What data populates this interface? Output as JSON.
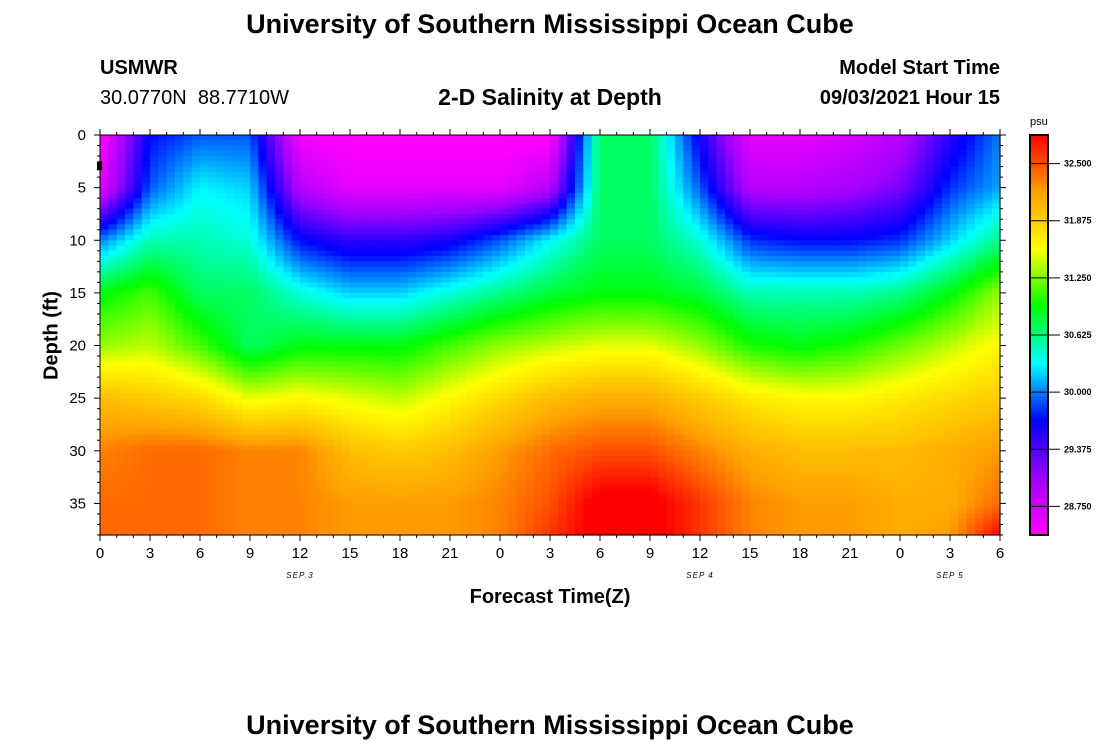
{
  "header": {
    "title": "University of Southern Mississippi Ocean Cube",
    "station_name": "USMWR",
    "station_coords": "30.0770N  88.7710W",
    "plot_title": "2-D Salinity at Depth",
    "model_start_label": "Model Start Time",
    "model_start_value": "09/03/2021 Hour 15"
  },
  "footer": {
    "title": "University of Southern Mississippi Ocean Cube"
  },
  "chart_data": {
    "type": "heatmap",
    "title": "2-D Salinity at Depth",
    "xlabel": "Forecast Time(Z)",
    "ylabel": "Depth (ft)",
    "x_ticks": [
      "0",
      "3",
      "6",
      "9",
      "12",
      "15",
      "18",
      "21",
      "0",
      "3",
      "6",
      "9",
      "12",
      "15",
      "18",
      "21",
      "0",
      "3",
      "6"
    ],
    "x_range_hours": [
      0,
      54
    ],
    "date_labels": [
      {
        "text": "SEP 3",
        "hour": 12
      },
      {
        "text": "SEP 4",
        "hour": 36
      },
      {
        "text": "SEP 5",
        "hour": 51
      }
    ],
    "y_ticks": [
      0,
      5,
      10,
      15,
      20,
      25,
      30,
      35
    ],
    "y_range_ft": [
      0,
      38
    ],
    "y_inverted": true,
    "colorbar": {
      "unit": "psu",
      "ticks": [
        "32.500",
        "31.875",
        "31.250",
        "30.625",
        "30.000",
        "29.375",
        "28.750"
      ],
      "range": [
        28.4375,
        32.8125
      ],
      "colors": [
        "#ff00ff",
        "#a000ff",
        "#0000ff",
        "#00ffff",
        "#00ff00",
        "#ffff00",
        "#ffa000",
        "#ff0000"
      ]
    },
    "depth_profile_ft": [
      0,
      5,
      10,
      15,
      20,
      25,
      30,
      35,
      38
    ],
    "time_profile_hours": [
      0,
      3,
      6,
      9,
      12,
      15,
      18,
      21,
      24,
      27,
      30,
      33,
      36,
      39,
      42,
      45,
      48,
      51,
      54
    ],
    "salinity_psu": [
      [
        28.4,
        29.7,
        29.9,
        29.9,
        28.5,
        28.4,
        28.4,
        28.4,
        28.4,
        28.4,
        30.7,
        30.7,
        29.6,
        28.6,
        28.6,
        28.7,
        28.9,
        29.5,
        30.0
      ],
      [
        28.6,
        29.9,
        30.3,
        30.2,
        28.9,
        28.6,
        28.6,
        28.6,
        28.6,
        28.9,
        30.7,
        30.7,
        29.9,
        28.9,
        28.9,
        29.0,
        29.2,
        29.8,
        30.1
      ],
      [
        30.0,
        30.5,
        30.5,
        30.4,
        29.7,
        29.5,
        29.5,
        29.6,
        29.9,
        30.3,
        30.7,
        30.7,
        30.4,
        29.8,
        29.7,
        29.7,
        29.8,
        30.2,
        30.6
      ],
      [
        30.9,
        31.1,
        30.7,
        30.7,
        30.4,
        30.2,
        30.2,
        30.4,
        30.6,
        30.8,
        30.9,
        30.9,
        30.8,
        30.5,
        30.5,
        30.5,
        30.6,
        30.9,
        31.3
      ],
      [
        31.3,
        31.4,
        31.1,
        30.7,
        30.9,
        30.9,
        30.9,
        31.1,
        31.3,
        31.4,
        31.5,
        31.5,
        31.3,
        31.0,
        30.9,
        31.0,
        31.2,
        31.4,
        31.6
      ],
      [
        32.0,
        31.9,
        31.8,
        31.5,
        31.6,
        31.5,
        31.4,
        31.6,
        31.8,
        32.0,
        32.1,
        32.1,
        31.9,
        31.7,
        31.6,
        31.6,
        31.7,
        31.8,
        31.9
      ],
      [
        32.3,
        32.4,
        32.4,
        32.3,
        32.3,
        32.0,
        31.9,
        32.0,
        32.2,
        32.4,
        32.5,
        32.5,
        32.3,
        32.1,
        32.0,
        32.0,
        32.0,
        32.1,
        32.2
      ],
      [
        32.4,
        32.4,
        32.4,
        32.3,
        32.3,
        32.2,
        32.2,
        32.2,
        32.3,
        32.5,
        32.9,
        32.9,
        32.6,
        32.3,
        32.2,
        32.2,
        32.1,
        32.1,
        32.4
      ],
      [
        32.4,
        32.4,
        32.4,
        32.3,
        32.3,
        32.2,
        32.2,
        32.2,
        32.3,
        32.6,
        32.9,
        32.9,
        32.6,
        32.3,
        32.2,
        32.2,
        32.1,
        32.2,
        32.8
      ]
    ]
  }
}
